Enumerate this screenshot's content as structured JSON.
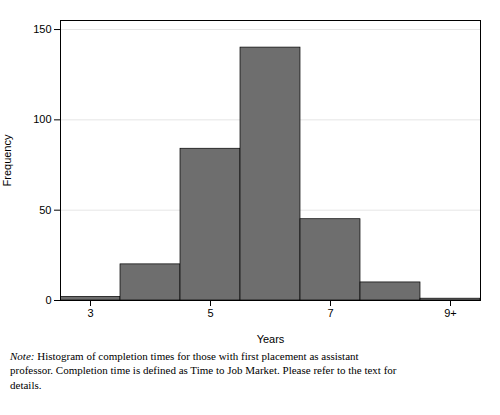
{
  "chart_data": {
    "type": "histogram",
    "bins": [
      2.5,
      3.5,
      4.5,
      5.5,
      6.5,
      7.5,
      8.5,
      9.5
    ],
    "values": [
      2,
      20,
      84,
      140,
      45,
      10,
      1
    ],
    "color": "#6e6e6e",
    "x_label": "Years",
    "y_label": "Frequency",
    "xlim": [
      2.5,
      9.5
    ],
    "xticks": [
      3,
      5,
      7,
      {
        "value": 9,
        "label": "9+"
      }
    ],
    "ylim": [
      0,
      155
    ],
    "yticks": [
      0,
      50,
      100,
      150
    ],
    "grid": true,
    "caption": "Note: Histogram of completion times for those with first placement as assistant\nprofessor. Completion time is defined as Time to Job Market. Please refer to the text for\ndetails."
  }
}
